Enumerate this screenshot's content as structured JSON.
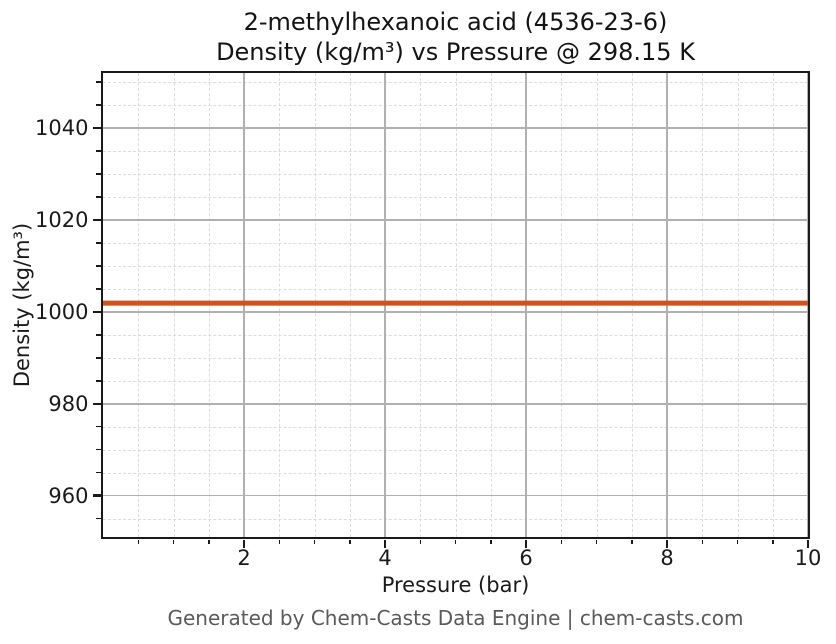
{
  "page": {
    "background_color": "#ffffff",
    "footer_text": "Generated by Chem-Casts Data Engine | chem-casts.com"
  },
  "chart_data": {
    "type": "line",
    "title": "2-methylhexanoic acid (4536-23-6)",
    "subtitle": "Density (kg/m³) vs Pressure @ 298.15 K",
    "xlabel": "Pressure (bar)",
    "ylabel": "Density (kg/m³)",
    "xlim": [
      0,
      10
    ],
    "ylim": [
      951,
      1052
    ],
    "x_major_ticks": [
      2,
      4,
      6,
      8,
      10
    ],
    "x_minor_step": 0.5,
    "y_major_ticks": [
      960,
      980,
      1000,
      1020,
      1040
    ],
    "y_minor_step": 5,
    "grid": true,
    "grid_major_color": "#b0b0b0",
    "grid_minor_color": "#dcdcdc",
    "legend": "none",
    "series": [
      {
        "name": "Density at 298.15 K",
        "color": "#d2521e",
        "x": [
          0,
          10
        ],
        "y": [
          1001.9,
          1001.9
        ]
      }
    ]
  }
}
